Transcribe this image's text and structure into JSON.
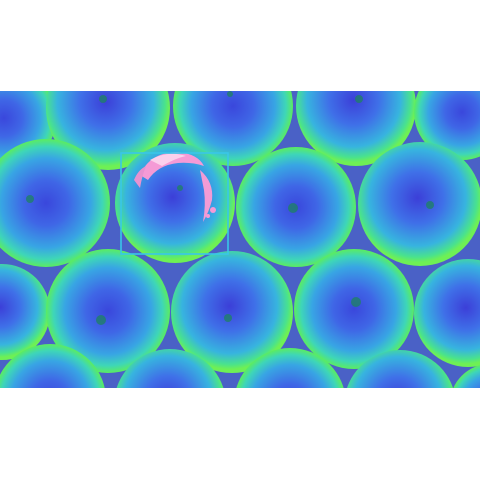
{
  "image": {
    "description_colors": {
      "background": "#ffffff",
      "gap_fill": "#7a2ad9",
      "apple_rim": "#56e86a",
      "apple_body": "#39a9e6",
      "apple_center": "#3f56e0",
      "hotspot": "#f59ad6",
      "highlight_box": "#39c6e8"
    },
    "apples": [
      {
        "id": "apple-r1-1"
      },
      {
        "id": "apple-r1-2"
      },
      {
        "id": "apple-r1-3"
      },
      {
        "id": "apple-r1-4"
      },
      {
        "id": "apple-r1-5"
      },
      {
        "id": "apple-r2-1"
      },
      {
        "id": "apple-r2-2"
      },
      {
        "id": "apple-r2-3"
      },
      {
        "id": "apple-r2-4"
      },
      {
        "id": "apple-r3-1"
      },
      {
        "id": "apple-r3-2"
      },
      {
        "id": "apple-r3-3"
      },
      {
        "id": "apple-r3-4"
      },
      {
        "id": "apple-r3-5"
      },
      {
        "id": "apple-r4-1"
      },
      {
        "id": "apple-r4-2"
      },
      {
        "id": "apple-r4-3"
      },
      {
        "id": "apple-r4-4"
      },
      {
        "id": "apple-r4-5"
      }
    ],
    "highlight": {
      "target": "apple-r2-2",
      "defect": "bruise-hotspot"
    }
  }
}
